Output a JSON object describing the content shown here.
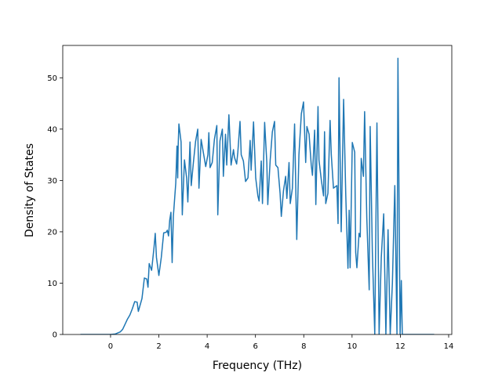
{
  "chart_data": {
    "type": "line",
    "xlabel": "Frequency (THz)",
    "ylabel": "Density of States",
    "color": "#1f77b4",
    "x": [
      -1.25,
      0,
      0.2,
      0.4,
      0.5,
      0.6,
      0.7,
      0.8,
      0.9,
      1.0,
      1.1,
      1.15,
      1.3,
      1.4,
      1.5,
      1.55,
      1.6,
      1.7,
      1.8,
      1.85,
      1.9,
      2.0,
      2.1,
      2.2,
      2.3,
      2.35,
      2.4,
      2.45,
      2.5,
      2.55,
      2.6,
      2.7,
      2.75,
      2.78,
      2.8,
      2.83,
      2.92,
      2.97,
      3.06,
      3.15,
      3.2,
      3.29,
      3.34,
      3.43,
      3.52,
      3.61,
      3.66,
      3.75,
      3.84,
      3.94,
      4.03,
      4.07,
      4.12,
      4.21,
      4.3,
      4.4,
      4.44,
      4.53,
      4.63,
      4.67,
      4.76,
      4.81,
      4.9,
      4.99,
      5.09,
      5.13,
      5.22,
      5.27,
      5.36,
      5.41,
      5.5,
      5.59,
      5.69,
      5.78,
      5.82,
      5.92,
      6.01,
      6.1,
      6.15,
      6.24,
      6.29,
      6.38,
      6.47,
      6.51,
      6.61,
      6.7,
      6.79,
      6.84,
      6.93,
      7.02,
      7.07,
      7.16,
      7.25,
      7.3,
      7.39,
      7.44,
      7.53,
      7.62,
      7.71,
      7.8,
      7.9,
      7.99,
      8.08,
      8.13,
      8.22,
      8.31,
      8.36,
      8.45,
      8.5,
      8.59,
      8.63,
      8.73,
      8.82,
      8.86,
      8.91,
      9.0,
      9.09,
      9.14,
      9.23,
      9.37,
      9.42,
      9.46,
      9.55,
      9.65,
      9.74,
      9.83,
      9.88,
      9.92,
      10.01,
      10.11,
      10.15,
      10.2,
      10.29,
      10.34,
      10.38,
      10.47,
      10.52,
      10.61,
      10.71,
      10.75,
      10.84,
      10.94,
      11.03,
      11.12,
      11.21,
      11.31,
      11.4,
      11.49,
      11.58,
      11.67,
      11.77,
      11.86,
      11.9,
      11.99,
      12.04,
      12.08,
      13.4
    ],
    "values": [
      0,
      0,
      0.1,
      0.5,
      1,
      2,
      3,
      3.8,
      5,
      6.4,
      6.3,
      4.5,
      7,
      11,
      10.8,
      9.2,
      13.8,
      12.5,
      17,
      19.7,
      15,
      11.5,
      15,
      19.8,
      19.9,
      20.3,
      19.2,
      22.3,
      23.8,
      14,
      23,
      29.5,
      36.7,
      30.5,
      36.8,
      41,
      37.5,
      23.3,
      34,
      30.5,
      25.8,
      37.5,
      29,
      33.5,
      37.6,
      40,
      28.5,
      38,
      35.5,
      32.7,
      35,
      39.3,
      32.5,
      33.5,
      38,
      40.7,
      23.3,
      37.7,
      40,
      30.8,
      39,
      33,
      42.8,
      33,
      36,
      34.5,
      33.2,
      35.5,
      41.5,
      35,
      33.8,
      29.8,
      30.5,
      37.8,
      32,
      41.4,
      30.5,
      27,
      26,
      33.8,
      25.5,
      41.3,
      33.5,
      25.3,
      34,
      39.5,
      41.5,
      33,
      32.5,
      27.5,
      23,
      28,
      30.8,
      26.5,
      33.5,
      25.5,
      28.5,
      41,
      18.5,
      35,
      43,
      45.3,
      33.5,
      40.5,
      39,
      33,
      31,
      39.8,
      25.3,
      44.4,
      34,
      30,
      27,
      39.5,
      25.5,
      27.5,
      41.7,
      35,
      28.5,
      29,
      21.6,
      50,
      20,
      45.8,
      27,
      12.9,
      24.2,
      13,
      37.4,
      35.5,
      16,
      13,
      19.7,
      19,
      34.3,
      30.8,
      43.4,
      22.7,
      8.7,
      40.5,
      16,
      0,
      41.2,
      0,
      15,
      23.5,
      0,
      20.4,
      0,
      10,
      29,
      0,
      53.8,
      0,
      10.5,
      0,
      0
    ],
    "xlim": [
      -1.98,
      14.13
    ],
    "xticks": [
      0,
      2,
      4,
      6,
      8,
      10,
      12,
      14
    ],
    "ylim": [
      0,
      56.3
    ],
    "yticks": [
      0,
      10,
      20,
      30,
      40,
      50
    ]
  }
}
